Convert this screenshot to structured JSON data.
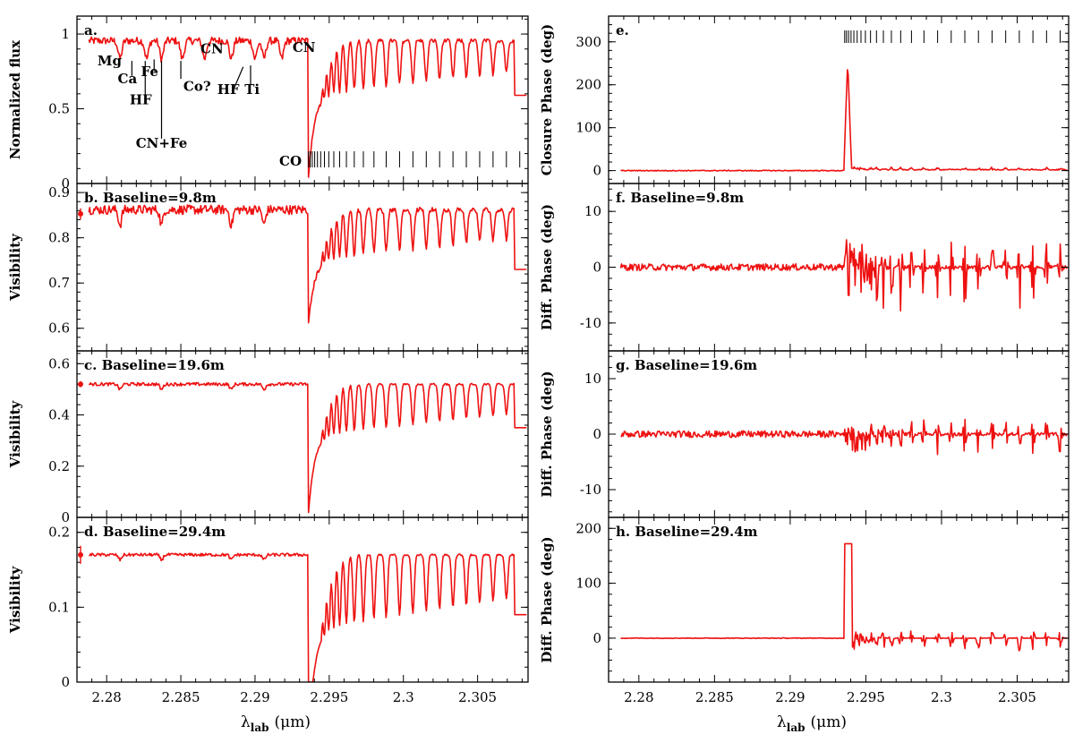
{
  "chart_data": [
    {
      "type": "line",
      "panel": "a",
      "label": "a.",
      "ylabel": "Normalized flux",
      "ylim": [
        0,
        1.12
      ],
      "yticks": [
        0,
        0.5,
        1
      ],
      "xlim": [
        2.278,
        2.3084
      ],
      "xticks": [
        2.28,
        2.285,
        2.29,
        2.295,
        2.3,
        2.305
      ],
      "kind": "flux",
      "base": 0.955,
      "band_depth": 0.36,
      "big_dip": 0.34,
      "end_value": 0.59,
      "annotations": [
        "Mg",
        "Ca",
        "Fe",
        "HF",
        "CN+Fe",
        "Co?",
        "CN",
        "HF",
        "Ti",
        "CN"
      ],
      "co_label": "CO",
      "series": [
        {
          "name": "Normalized flux",
          "color": "#ee1111"
        }
      ]
    },
    {
      "type": "line",
      "panel": "b",
      "label": "b. Baseline=9.8m",
      "ylabel": "Visibility",
      "ylim": [
        0.55,
        0.92
      ],
      "yticks": [
        0.6,
        0.7,
        0.8,
        0.9
      ],
      "kind": "vis",
      "base": 0.862,
      "band_depth": 0.11,
      "big_dip": 0.7,
      "end_value": 0.73,
      "error_point": {
        "value": 0.853,
        "err": 0.012
      },
      "series": [
        {
          "name": "Visibility B=9.8m",
          "color": "#ee1111"
        }
      ]
    },
    {
      "type": "line",
      "panel": "c",
      "label": "c. Baseline=19.6m",
      "ylabel": "Visibility",
      "ylim": [
        0,
        0.65
      ],
      "yticks": [
        0,
        0.2,
        0.4,
        0.6
      ],
      "kind": "vis",
      "base": 0.52,
      "band_depth": 0.2,
      "big_dip": 0.18,
      "end_value": 0.35,
      "error_point": {
        "value": 0.52,
        "err": 0.012
      },
      "series": [
        {
          "name": "Visibility B=19.6m",
          "color": "#ee1111"
        }
      ]
    },
    {
      "type": "line",
      "panel": "d",
      "label": "d. Baseline=29.4m",
      "ylabel": "Visibility",
      "ylim": [
        0,
        0.22
      ],
      "yticks": [
        0,
        0.1,
        0.2
      ],
      "kind": "vis",
      "base": 0.17,
      "band_depth": 0.1,
      "big_dip": 0.0,
      "end_value": 0.09,
      "error_point": {
        "value": 0.17,
        "err": 0.012
      },
      "series": [
        {
          "name": "Visibility B=29.4m",
          "color": "#ee1111"
        }
      ]
    },
    {
      "type": "line",
      "panel": "e",
      "label": "e.",
      "ylabel": "Closure Phase (deg)",
      "ylim": [
        -30,
        360
      ],
      "yticks": [
        0,
        100,
        200,
        300
      ],
      "kind": "closure",
      "spike": 248,
      "co_top": true,
      "series": [
        {
          "name": "Closure phase",
          "color": "#ee1111"
        }
      ]
    },
    {
      "type": "line",
      "panel": "f",
      "label": "f. Baseline=9.8m",
      "ylabel": "Diff. Phase (deg)",
      "ylim": [
        -15,
        15
      ],
      "yticks": [
        -10,
        0,
        10
      ],
      "kind": "dphase",
      "amp": 5,
      "series": [
        {
          "name": "Diff. phase B=9.8m",
          "color": "#ee1111"
        }
      ]
    },
    {
      "type": "line",
      "panel": "g",
      "label": "g. Baseline=19.6m",
      "ylabel": "Diff. Phase (deg)",
      "ylim": [
        -15,
        15
      ],
      "yticks": [
        -10,
        0,
        10
      ],
      "kind": "dphase",
      "amp": 2.5,
      "series": [
        {
          "name": "Diff. phase B=19.6m",
          "color": "#ee1111"
        }
      ]
    },
    {
      "type": "line",
      "panel": "h",
      "label": "h. Baseline=29.4m",
      "ylabel": "Diff. Phase (deg)",
      "ylim": [
        -80,
        220
      ],
      "yticks": [
        0,
        100,
        200
      ],
      "kind": "dphase_spike",
      "spike": 172,
      "amp": 15,
      "series": [
        {
          "name": "Diff. phase B=29.4m",
          "color": "#ee1111"
        }
      ]
    }
  ],
  "x_axis": {
    "label_main": "λ",
    "label_sub": "lab",
    "label_unit": "(μm)",
    "tick_labels": [
      "2.28",
      "2.285",
      "2.29",
      "2.295",
      "2.3",
      "2.305"
    ]
  }
}
